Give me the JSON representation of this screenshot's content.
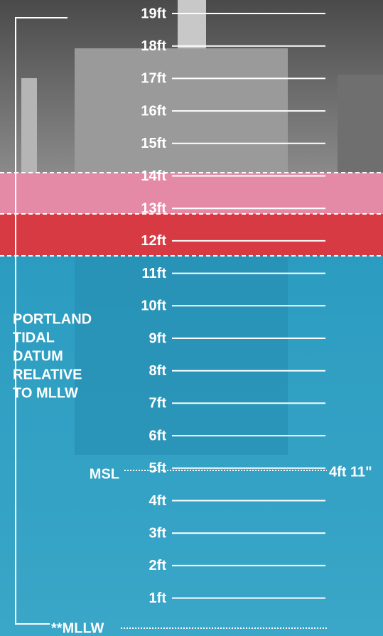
{
  "scale": {
    "ticks": [
      "19ft",
      "18ft",
      "17ft",
      "16ft",
      "15ft",
      "14ft",
      "13ft",
      "12ft",
      "11ft",
      "10ft",
      "9ft",
      "8ft",
      "7ft",
      "6ft",
      "5ft",
      "4ft",
      "3ft",
      "2ft",
      "1ft"
    ]
  },
  "side_label": {
    "lines": [
      "PORTLAND",
      "TIDAL",
      "DATUM",
      "RELATIVE",
      "TO MLLW"
    ]
  },
  "msl": {
    "label": "MSL",
    "value_label": "4ft 11\""
  },
  "mllw": {
    "label": "**MLLW"
  }
}
